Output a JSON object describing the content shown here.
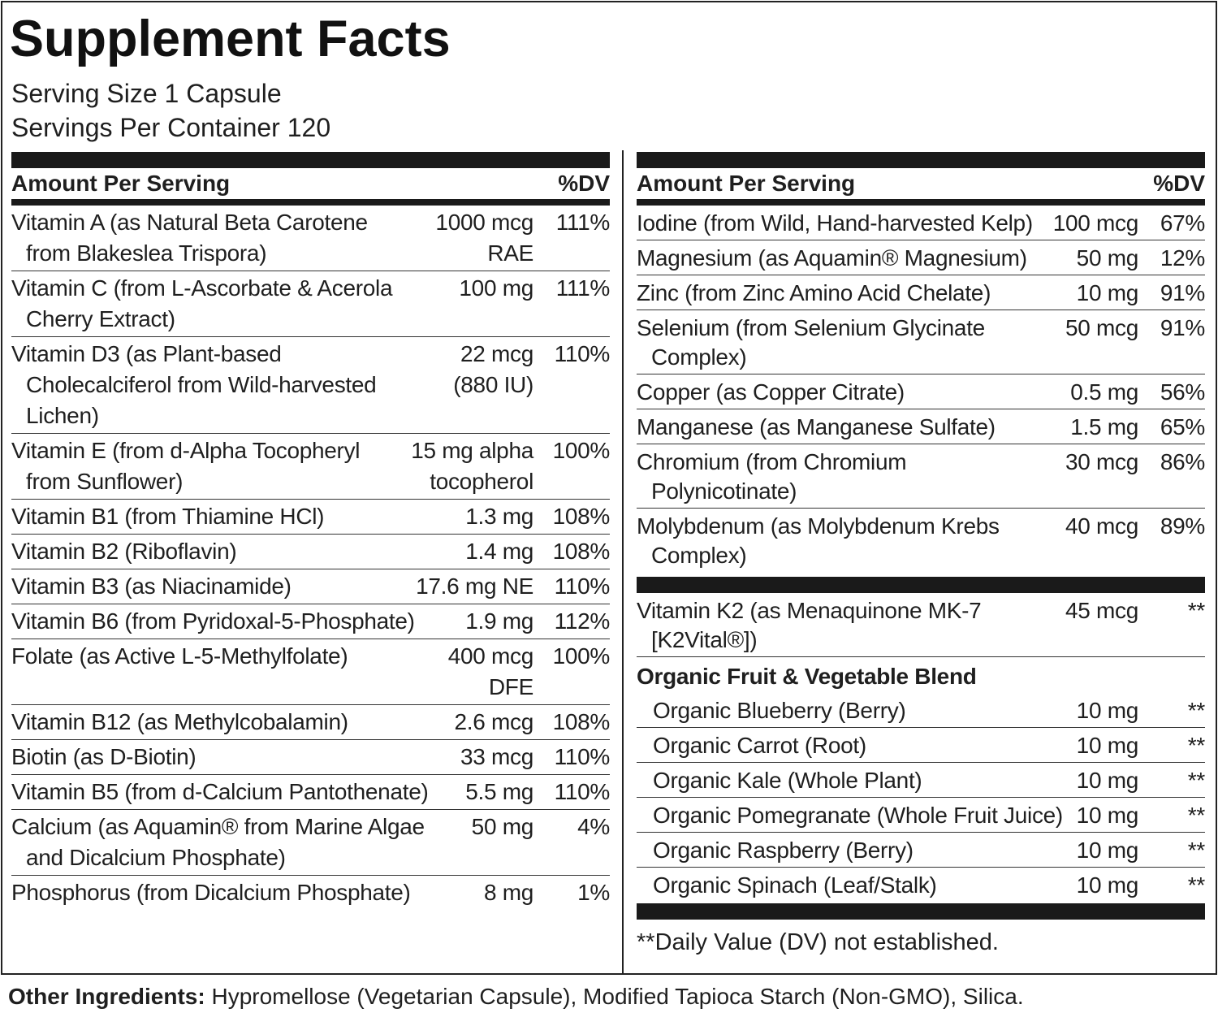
{
  "title": "Supplement Facts",
  "serving_size": "Serving Size 1 Capsule",
  "servings_per_container": "Servings Per Container 120",
  "left": {
    "header": {
      "amount": "Amount Per Serving",
      "dv": "%DV"
    },
    "rows": [
      {
        "name": "Vitamin A (as Natural Beta Carotene from Blakeslea Trispora)",
        "amount": "1000 mcg RAE",
        "dv": "111%"
      },
      {
        "name": "Vitamin C (from L-Ascorbate & Acerola Cherry Extract)",
        "amount": "100 mg",
        "dv": "111%"
      },
      {
        "name": "Vitamin D3 (as Plant-based Cholecalciferol from Wild-harvested Lichen)",
        "amount": "22 mcg (880 IU)",
        "dv": "110%"
      },
      {
        "name": "Vitamin E (from d-Alpha Tocopheryl from Sunflower)",
        "amount": "15 mg alpha tocopherol",
        "dv": "100%"
      },
      {
        "name": "Vitamin B1 (from Thiamine HCl)",
        "amount": "1.3 mg",
        "dv": "108%"
      },
      {
        "name": "Vitamin B2 (Riboflavin)",
        "amount": "1.4 mg",
        "dv": "108%"
      },
      {
        "name": "Vitamin B3 (as Niacinamide)",
        "amount": "17.6 mg NE",
        "dv": "110%"
      },
      {
        "name": "Vitamin B6 (from Pyridoxal-5-Phosphate)",
        "amount": "1.9 mg",
        "dv": "112%"
      },
      {
        "name": "Folate (as Active L-5-Methylfolate)",
        "amount": "400 mcg DFE",
        "dv": "100%"
      },
      {
        "name": "Vitamin B12 (as Methylcobalamin)",
        "amount": "2.6 mcg",
        "dv": "108%"
      },
      {
        "name": "Biotin (as D-Biotin)",
        "amount": "33 mcg",
        "dv": "110%"
      },
      {
        "name": "Vitamin B5 (from d-Calcium Pantothenate)",
        "amount": "5.5 mg",
        "dv": "110%"
      },
      {
        "name": "Calcium (as Aquamin® from Marine Algae and Dicalcium Phosphate)",
        "amount": "50 mg",
        "dv": "4%"
      },
      {
        "name": "Phosphorus (from Dicalcium Phosphate)",
        "amount": "8 mg",
        "dv": "1%"
      }
    ]
  },
  "right": {
    "header": {
      "amount": "Amount Per Serving",
      "dv": "%DV"
    },
    "rows": [
      {
        "name": "Iodine (from Wild, Hand-harvested Kelp)",
        "amount": "100 mcg",
        "dv": "67%"
      },
      {
        "name": "Magnesium (as Aquamin® Magnesium)",
        "amount": "50 mg",
        "dv": "12%"
      },
      {
        "name": "Zinc (from Zinc Amino Acid Chelate)",
        "amount": "10 mg",
        "dv": "91%"
      },
      {
        "name": "Selenium (from Selenium Glycinate Complex)",
        "amount": "50 mcg",
        "dv": "91%"
      },
      {
        "name": "Copper (as Copper Citrate)",
        "amount": "0.5 mg",
        "dv": "56%"
      },
      {
        "name": "Manganese (as Manganese Sulfate)",
        "amount": "1.5 mg",
        "dv": "65%"
      },
      {
        "name": "Chromium (from Chromium Polynicotinate)",
        "amount": "30 mcg",
        "dv": "86%"
      },
      {
        "name": "Molybdenum (as Molybdenum Krebs Complex)",
        "amount": "40 mcg",
        "dv": "89%"
      }
    ],
    "extra_rows": [
      {
        "name": "Vitamin K2 (as Menaquinone MK-7 [K2Vital®])",
        "amount": "45 mcg",
        "dv": "**"
      }
    ],
    "blend": {
      "title": "Organic Fruit & Vegetable Blend",
      "rows": [
        {
          "name": "Organic Blueberry (Berry)",
          "amount": "10 mg",
          "dv": "**"
        },
        {
          "name": "Organic Carrot (Root)",
          "amount": "10 mg",
          "dv": "**"
        },
        {
          "name": "Organic Kale (Whole Plant)",
          "amount": "10 mg",
          "dv": "**"
        },
        {
          "name": "Organic Pomegranate (Whole Fruit Juice)",
          "amount": "10 mg",
          "dv": "**"
        },
        {
          "name": "Organic Raspberry (Berry)",
          "amount": "10 mg",
          "dv": "**"
        },
        {
          "name": "Organic Spinach (Leaf/Stalk)",
          "amount": "10 mg",
          "dv": "**"
        }
      ]
    },
    "footnote": "**Daily Value (DV) not established."
  },
  "other_ingredients": {
    "label": "Other Ingredients:",
    "text": "Hypromellose (Vegetarian Capsule), Modified Tapioca Starch (Non-GMO), Silica."
  }
}
